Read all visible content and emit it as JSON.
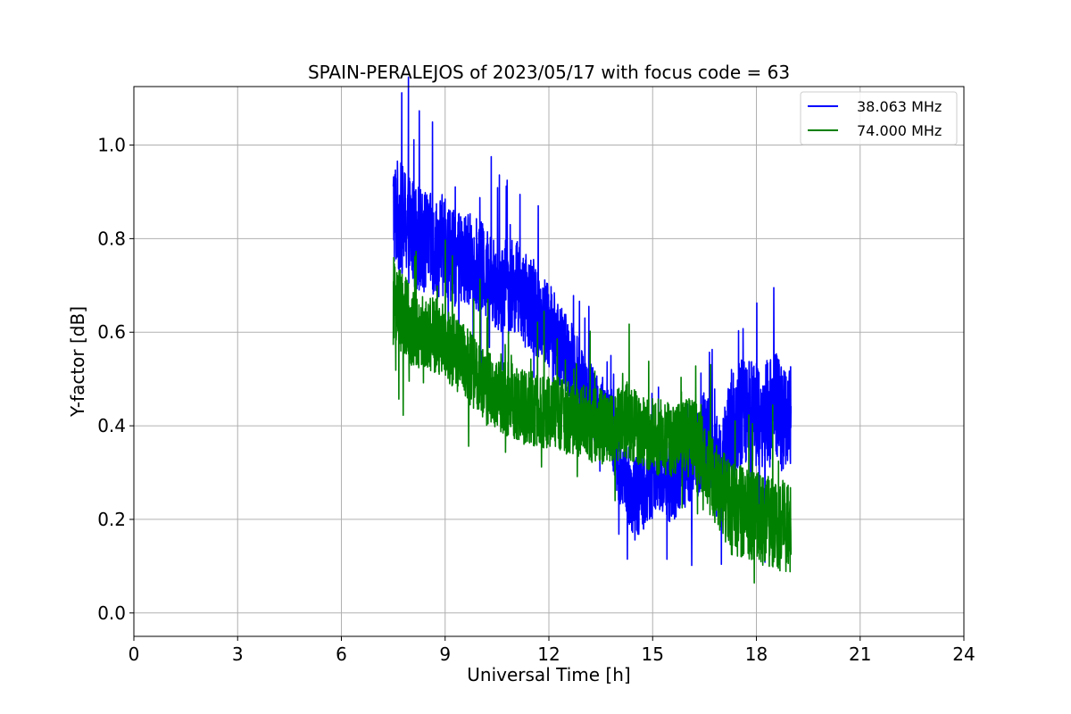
{
  "chart_data": {
    "type": "line",
    "title": "SPAIN-PERALEJOS of 2023/05/17 with focus code = 63",
    "xlabel": "Universal Time [h]",
    "ylabel": "Y-factor [dB]",
    "xlim": [
      0,
      24
    ],
    "ylim": [
      -0.05,
      1.125
    ],
    "xticks": [
      0,
      3,
      6,
      9,
      12,
      15,
      18,
      21,
      24
    ],
    "yticks": [
      0.0,
      0.2,
      0.4,
      0.6,
      0.8,
      1.0
    ],
    "xtick_labels": [
      "0",
      "3",
      "6",
      "9",
      "12",
      "15",
      "18",
      "21",
      "24"
    ],
    "ytick_labels": [
      "0.0",
      "0.2",
      "0.4",
      "0.6",
      "0.8",
      "1.0"
    ],
    "grid": true,
    "legend_position": "top-right",
    "series": [
      {
        "name": "38.063 MHz",
        "color": "#0000ff",
        "x": [
          7.5,
          7.75,
          8.0,
          8.25,
          8.5,
          8.75,
          9.0,
          9.25,
          9.5,
          9.75,
          10.0,
          10.25,
          10.5,
          10.75,
          11.0,
          11.25,
          11.5,
          11.75,
          12.0,
          12.25,
          12.5,
          12.75,
          13.0,
          13.25,
          13.5,
          13.75,
          14.0,
          14.25,
          14.5,
          14.75,
          15.0,
          15.25,
          15.5,
          15.75,
          16.0,
          16.25,
          16.5,
          16.75,
          17.0,
          17.25,
          17.5,
          17.75,
          18.0,
          18.25,
          18.5,
          18.75,
          19.0
        ],
        "y": [
          0.86,
          0.84,
          0.82,
          0.8,
          0.79,
          0.78,
          0.79,
          0.76,
          0.75,
          0.76,
          0.74,
          0.72,
          0.7,
          0.69,
          0.7,
          0.67,
          0.66,
          0.64,
          0.62,
          0.58,
          0.55,
          0.52,
          0.48,
          0.45,
          0.43,
          0.42,
          0.33,
          0.28,
          0.24,
          0.27,
          0.29,
          0.3,
          0.28,
          0.3,
          0.32,
          0.33,
          0.38,
          0.34,
          0.3,
          0.4,
          0.42,
          0.44,
          0.43,
          0.42,
          0.44,
          0.42,
          0.42
        ],
        "spread": [
          0.12,
          0.12,
          0.12,
          0.11,
          0.11,
          0.11,
          0.11,
          0.1,
          0.1,
          0.1,
          0.1,
          0.1,
          0.1,
          0.1,
          0.1,
          0.1,
          0.1,
          0.1,
          0.1,
          0.09,
          0.09,
          0.09,
          0.09,
          0.08,
          0.08,
          0.08,
          0.09,
          0.09,
          0.09,
          0.09,
          0.09,
          0.09,
          0.09,
          0.09,
          0.09,
          0.09,
          0.1,
          0.1,
          0.1,
          0.12,
          0.12,
          0.12,
          0.12,
          0.12,
          0.12,
          0.12,
          0.12
        ]
      },
      {
        "name": "74.000 MHz",
        "color": "#008000",
        "x": [
          7.5,
          7.75,
          8.0,
          8.25,
          8.5,
          8.75,
          9.0,
          9.25,
          9.5,
          9.75,
          10.0,
          10.25,
          10.5,
          10.75,
          11.0,
          11.25,
          11.5,
          11.75,
          12.0,
          12.25,
          12.5,
          12.75,
          13.0,
          13.25,
          13.5,
          13.75,
          14.0,
          14.25,
          14.5,
          14.75,
          15.0,
          15.25,
          15.5,
          15.75,
          16.0,
          16.25,
          16.5,
          16.75,
          17.0,
          17.25,
          17.5,
          17.75,
          18.0,
          18.25,
          18.5,
          18.75,
          19.0
        ],
        "y": [
          0.66,
          0.64,
          0.62,
          0.6,
          0.6,
          0.59,
          0.58,
          0.56,
          0.54,
          0.52,
          0.5,
          0.48,
          0.47,
          0.46,
          0.45,
          0.44,
          0.44,
          0.43,
          0.43,
          0.43,
          0.42,
          0.41,
          0.41,
          0.4,
          0.4,
          0.39,
          0.4,
          0.41,
          0.4,
          0.38,
          0.38,
          0.37,
          0.37,
          0.38,
          0.38,
          0.37,
          0.32,
          0.28,
          0.26,
          0.22,
          0.22,
          0.21,
          0.2,
          0.2,
          0.19,
          0.19,
          0.18
        ],
        "spread": [
          0.09,
          0.09,
          0.09,
          0.08,
          0.08,
          0.08,
          0.08,
          0.08,
          0.08,
          0.08,
          0.08,
          0.08,
          0.08,
          0.08,
          0.08,
          0.08,
          0.08,
          0.08,
          0.08,
          0.08,
          0.08,
          0.08,
          0.08,
          0.08,
          0.08,
          0.08,
          0.08,
          0.08,
          0.08,
          0.08,
          0.08,
          0.08,
          0.08,
          0.08,
          0.08,
          0.08,
          0.09,
          0.09,
          0.09,
          0.1,
          0.1,
          0.1,
          0.1,
          0.1,
          0.1,
          0.1,
          0.1
        ]
      }
    ]
  }
}
